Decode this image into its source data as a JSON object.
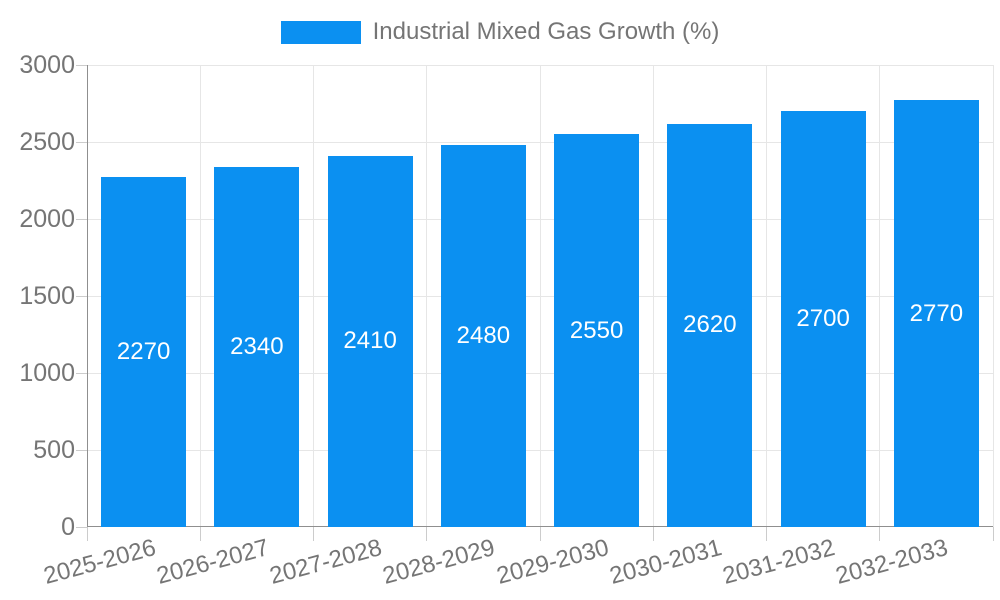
{
  "legend": {
    "swatch_color": "#0b90f1",
    "label": "Industrial Mixed Gas Growth (%)"
  },
  "chart_data": {
    "type": "bar",
    "title": "Industrial Mixed Gas Growth (%)",
    "categories": [
      "2025-2026",
      "2026-2027",
      "2027-2028",
      "2028-2029",
      "2029-2030",
      "2030-2031",
      "2031-2032",
      "2032-2033"
    ],
    "values": [
      2270,
      2340,
      2410,
      2480,
      2550,
      2620,
      2700,
      2770
    ],
    "bar_labels": [
      "2270",
      "2340",
      "2410",
      "2480",
      "2550",
      "2620",
      "2700",
      "2770"
    ],
    "xlabel": "",
    "ylabel": "",
    "ylim": [
      0,
      3000
    ],
    "ytick_step": 500,
    "y_tick_labels": [
      "0",
      "500",
      "1000",
      "1500",
      "2000",
      "2500",
      "3000"
    ],
    "grid": true,
    "legend_position": "top",
    "colors": {
      "bar": "#0b90f1",
      "bar_label": "#ffffff",
      "axis_text": "#757575",
      "grid_line": "#e6e6e6",
      "axis_line": "#8f8f8f",
      "tick_mark": "#cccccc",
      "background": "#ffffff"
    }
  }
}
